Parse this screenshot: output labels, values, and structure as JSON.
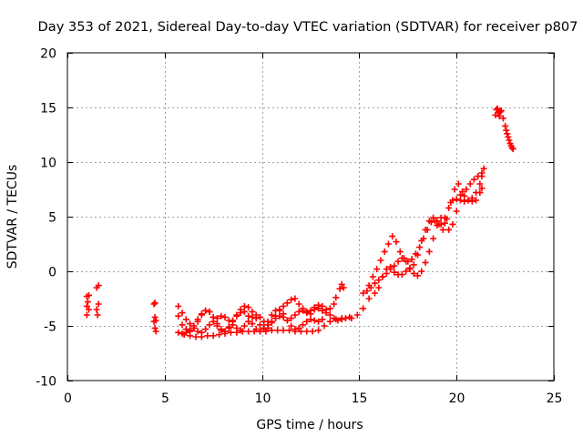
{
  "chart_data": {
    "type": "scatter",
    "title": "Day 353 of 2021, Sidereal Day-to-day VTEC variation (SDTVAR) for receiver p807",
    "xlabel": "GPS time / hours",
    "ylabel": "SDTVAR / TECUs",
    "xlim": [
      0,
      25
    ],
    "ylim": [
      -10,
      20
    ],
    "xticks": [
      0,
      5,
      10,
      15,
      20,
      25
    ],
    "yticks": [
      -10,
      -5,
      0,
      5,
      10,
      15,
      20
    ],
    "grid": true,
    "marker": "+",
    "color": "#ff0000",
    "series": [
      {
        "name": "SDTVAR",
        "x": [
          1.0,
          1.0,
          1.0,
          1.05,
          1.1,
          1.1,
          1.5,
          1.5,
          1.55,
          1.6,
          1.6,
          4.45,
          4.45,
          4.5,
          4.5,
          4.5,
          4.55,
          4.55,
          5.7,
          5.9,
          6.1,
          6.3,
          6.5,
          6.7,
          6.9,
          7.1,
          7.3,
          7.5,
          7.7,
          7.9,
          8.1,
          8.3,
          8.5,
          8.7,
          8.9,
          9.1,
          9.3,
          9.5,
          9.7,
          9.9,
          10.1,
          10.3,
          10.5,
          10.7,
          10.9,
          11.1,
          11.3,
          11.5,
          11.7,
          11.9,
          12.1,
          12.3,
          12.5,
          12.7,
          12.9,
          13.1,
          13.3,
          13.5,
          13.7,
          13.9,
          14.1,
          14.3,
          14.5,
          5.7,
          5.9,
          6.1,
          6.3,
          6.5,
          6.7,
          6.9,
          7.1,
          7.3,
          7.5,
          7.7,
          7.9,
          8.1,
          8.3,
          8.5,
          8.7,
          8.9,
          9.1,
          9.3,
          9.5,
          9.7,
          9.9,
          10.1,
          10.3,
          10.5,
          10.7,
          10.9,
          11.1,
          11.3,
          11.5,
          11.7,
          11.9,
          12.1,
          12.3,
          12.5,
          12.7,
          12.9,
          13.1,
          5.7,
          5.9,
          6.1,
          6.3,
          6.5,
          6.7,
          6.9,
          7.1,
          7.3,
          7.5,
          7.7,
          7.9,
          8.1,
          8.3,
          8.5,
          8.7,
          8.9,
          9.1,
          9.3,
          9.5,
          9.7,
          9.9,
          10.1,
          10.3,
          10.5,
          10.7,
          10.9,
          11.1,
          11.3,
          11.5,
          11.7,
          11.9,
          12.1,
          12.3,
          12.5,
          12.7,
          12.9,
          13.1,
          13.3,
          13.5,
          13.7,
          6.0,
          6.3,
          6.6,
          6.9,
          7.2,
          7.5,
          7.8,
          8.1,
          8.4,
          8.7,
          9.0,
          9.3,
          9.6,
          9.9,
          10.2,
          10.5,
          10.8,
          11.1,
          11.4,
          11.7,
          12.0,
          12.3,
          12.6,
          12.9,
          13.2,
          13.5,
          13.8,
          14.1,
          13.8,
          14.0,
          14.1,
          14.2,
          14.6,
          14.9,
          15.2,
          15.5,
          15.8,
          16.0,
          16.2,
          16.4,
          16.6,
          16.8,
          17.0,
          17.2,
          17.4,
          17.6,
          17.8,
          18.0,
          18.2,
          18.4,
          18.6,
          18.8,
          19.0,
          19.2,
          19.4,
          19.6,
          19.8,
          20.0,
          20.2,
          20.4,
          20.6,
          20.8,
          21.0,
          21.2,
          21.3,
          15.5,
          15.7,
          15.9,
          16.1,
          16.3,
          16.5,
          16.7,
          16.9,
          17.1,
          17.3,
          17.5,
          17.7,
          17.9,
          18.1,
          18.3,
          18.5,
          18.7,
          18.9,
          19.1,
          19.3,
          19.5,
          19.7,
          19.9,
          20.1,
          20.3,
          20.5,
          20.7,
          20.9,
          21.1,
          21.3,
          21.4,
          15.2,
          15.4,
          15.6,
          15.8,
          16.0,
          16.2,
          16.4,
          16.6,
          16.8,
          17.0,
          17.2,
          17.4,
          17.6,
          17.8,
          18.0,
          18.2,
          18.4,
          18.6,
          18.8,
          19.0,
          19.2,
          19.4,
          19.6,
          19.8,
          20.0,
          20.2,
          20.4,
          20.6,
          20.8,
          21.0,
          21.2,
          21.3,
          22.0,
          22.05,
          22.1,
          22.15,
          22.2,
          22.25,
          22.3,
          22.4,
          22.5,
          22.55,
          22.6,
          22.65,
          22.7,
          22.75,
          22.8,
          22.85,
          22.9
        ],
        "y": [
          -2.3,
          -3.2,
          -4.0,
          -2.8,
          -3.5,
          -2.2,
          -1.5,
          -3.5,
          -4.0,
          -3.0,
          -1.3,
          -3.0,
          -4.6,
          -5.2,
          -4.2,
          -2.9,
          -5.5,
          -4.5,
          -3.2,
          -3.8,
          -4.4,
          -4.8,
          -5.2,
          -5.5,
          -5.6,
          -5.3,
          -4.9,
          -4.6,
          -4.3,
          -4.1,
          -4.2,
          -4.5,
          -4.9,
          -5.2,
          -5.4,
          -5.0,
          -4.6,
          -4.2,
          -4.0,
          -4.2,
          -4.6,
          -4.9,
          -4.6,
          -4.3,
          -4.1,
          -4.2,
          -4.5,
          -4.3,
          -4.0,
          -3.7,
          -3.6,
          -3.8,
          -3.9,
          -3.5,
          -3.4,
          -3.6,
          -3.8,
          -4.0,
          -4.3,
          -4.5,
          -4.4,
          -4.3,
          -4.2,
          -4.1,
          -4.9,
          -5.3,
          -5.5,
          -5.2,
          -4.6,
          -4.0,
          -3.6,
          -3.7,
          -4.2,
          -5.0,
          -5.4,
          -5.5,
          -5.1,
          -4.5,
          -4.1,
          -3.8,
          -3.7,
          -4.1,
          -4.8,
          -5.3,
          -5.5,
          -5.2,
          -4.6,
          -4.0,
          -3.6,
          -3.5,
          -3.9,
          -4.5,
          -5.0,
          -5.3,
          -5.2,
          -4.9,
          -4.6,
          -4.4,
          -4.5,
          -4.6,
          -4.4,
          -5.6,
          -5.7,
          -5.6,
          -5.4,
          -5.0,
          -4.4,
          -3.9,
          -3.6,
          -3.7,
          -4.2,
          -4.8,
          -5.3,
          -5.5,
          -5.2,
          -4.6,
          -4.0,
          -3.5,
          -3.2,
          -3.3,
          -3.7,
          -4.3,
          -4.9,
          -5.3,
          -5.2,
          -4.7,
          -4.1,
          -3.6,
          -3.2,
          -2.9,
          -2.6,
          -2.5,
          -3.0,
          -3.4,
          -3.7,
          -3.6,
          -3.3,
          -3.1,
          -3.2,
          -3.5,
          -3.4,
          -3.0,
          -5.8,
          -5.9,
          -6.0,
          -6.0,
          -5.9,
          -5.9,
          -5.8,
          -5.7,
          -5.6,
          -5.6,
          -5.5,
          -5.5,
          -5.5,
          -5.5,
          -5.5,
          -5.4,
          -5.4,
          -5.4,
          -5.4,
          -5.5,
          -5.5,
          -5.5,
          -5.5,
          -5.4,
          -5.0,
          -4.6,
          -4.4,
          -4.3,
          -2.4,
          -1.6,
          -1.2,
          -1.5,
          -4.3,
          -4.0,
          -3.4,
          -2.5,
          -2.0,
          -1.5,
          -0.5,
          0.2,
          0.4,
          -0.1,
          -0.3,
          -0.3,
          0.0,
          0.2,
          0.6,
          1.5,
          2.8,
          3.8,
          4.6,
          4.9,
          4.6,
          4.3,
          4.9,
          5.8,
          6.5,
          6.6,
          6.5,
          6.4,
          6.5,
          6.4,
          6.5,
          7.2,
          7.6,
          -1.3,
          -0.5,
          0.2,
          1.0,
          1.8,
          2.5,
          3.2,
          2.7,
          1.8,
          1.2,
          0.9,
          1.1,
          1.6,
          2.2,
          3.0,
          3.8,
          4.5,
          4.6,
          4.3,
          3.8,
          4.8,
          6.3,
          7.5,
          8.0,
          7.3,
          7.5,
          8.0,
          8.4,
          8.7,
          9.0,
          9.4,
          -2.0,
          -1.8,
          -1.5,
          -1.1,
          -0.8,
          -0.5,
          -0.2,
          0.2,
          0.5,
          0.9,
          1.2,
          0.9,
          0.3,
          -0.2,
          -0.4,
          0.0,
          0.8,
          1.8,
          3.0,
          4.2,
          4.9,
          4.4,
          3.8,
          4.3,
          5.5,
          7.0,
          6.9,
          6.5,
          6.7,
          7.2,
          8.0,
          8.7,
          14.3,
          14.8,
          14.9,
          14.5,
          14.2,
          14.6,
          14.7,
          14.0,
          13.3,
          12.9,
          12.6,
          12.3,
          12.0,
          11.7,
          11.5,
          11.3,
          11.2
        ]
      }
    ]
  }
}
